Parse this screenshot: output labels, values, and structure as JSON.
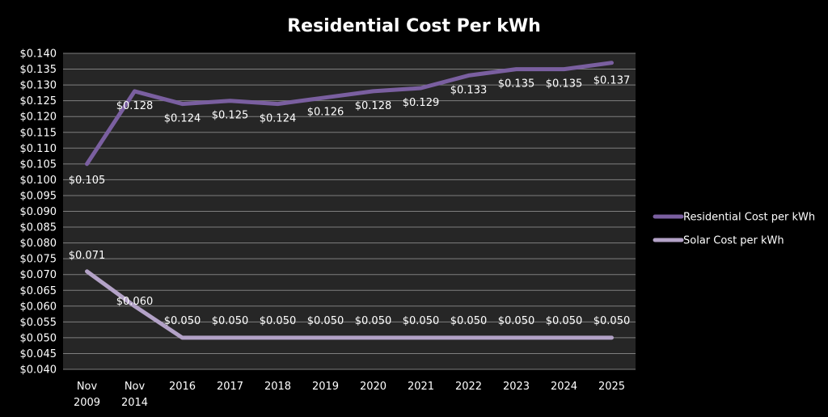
{
  "chart_data": {
    "type": "line",
    "title": "Residential Cost Per kWh",
    "xlabel": "",
    "ylabel": "",
    "categories": [
      "Nov 2009",
      "Nov 2014",
      "2016",
      "2017",
      "2018",
      "2019",
      "2020",
      "2021",
      "2022",
      "2023",
      "2024",
      "2025"
    ],
    "ylim": [
      0.04,
      0.14
    ],
    "ytick_step": 0.005,
    "ytick_labels": [
      "$0.040",
      "$0.045",
      "$0.050",
      "$0.055",
      "$0.060",
      "$0.065",
      "$0.070",
      "$0.075",
      "$0.080",
      "$0.085",
      "$0.090",
      "$0.095",
      "$0.100",
      "$0.105",
      "$0.110",
      "$0.115",
      "$0.120",
      "$0.125",
      "$0.130",
      "$0.135",
      "$0.140"
    ],
    "grid": true,
    "legend_position": "right",
    "plot_background": "#262626",
    "page_background": "#000000",
    "gridline_color": "#7f7f7f",
    "series": [
      {
        "name": "Residential Cost per kWh",
        "color": "#7a5fa0",
        "values": [
          0.105,
          0.128,
          0.124,
          0.125,
          0.124,
          0.126,
          0.128,
          0.129,
          0.133,
          0.135,
          0.135,
          0.137
        ],
        "data_labels": [
          "$0.105",
          "$0.128",
          "$0.124",
          "$0.125",
          "$0.124",
          "$0.126",
          "$0.128",
          "$0.129",
          "$0.133",
          "$0.135",
          "$0.135",
          "$0.137"
        ]
      },
      {
        "name": "Solar Cost per kWh",
        "color": "#b3a2c7",
        "values": [
          0.071,
          0.06,
          0.05,
          0.05,
          0.05,
          0.05,
          0.05,
          0.05,
          0.05,
          0.05,
          0.05,
          0.05
        ],
        "data_labels": [
          "$0.071",
          "$0.060",
          "$0.050",
          "$0.050",
          "$0.050",
          "$0.050",
          "$0.050",
          "$0.050",
          "$0.050",
          "$0.050",
          "$0.050",
          "$0.050"
        ]
      }
    ]
  }
}
